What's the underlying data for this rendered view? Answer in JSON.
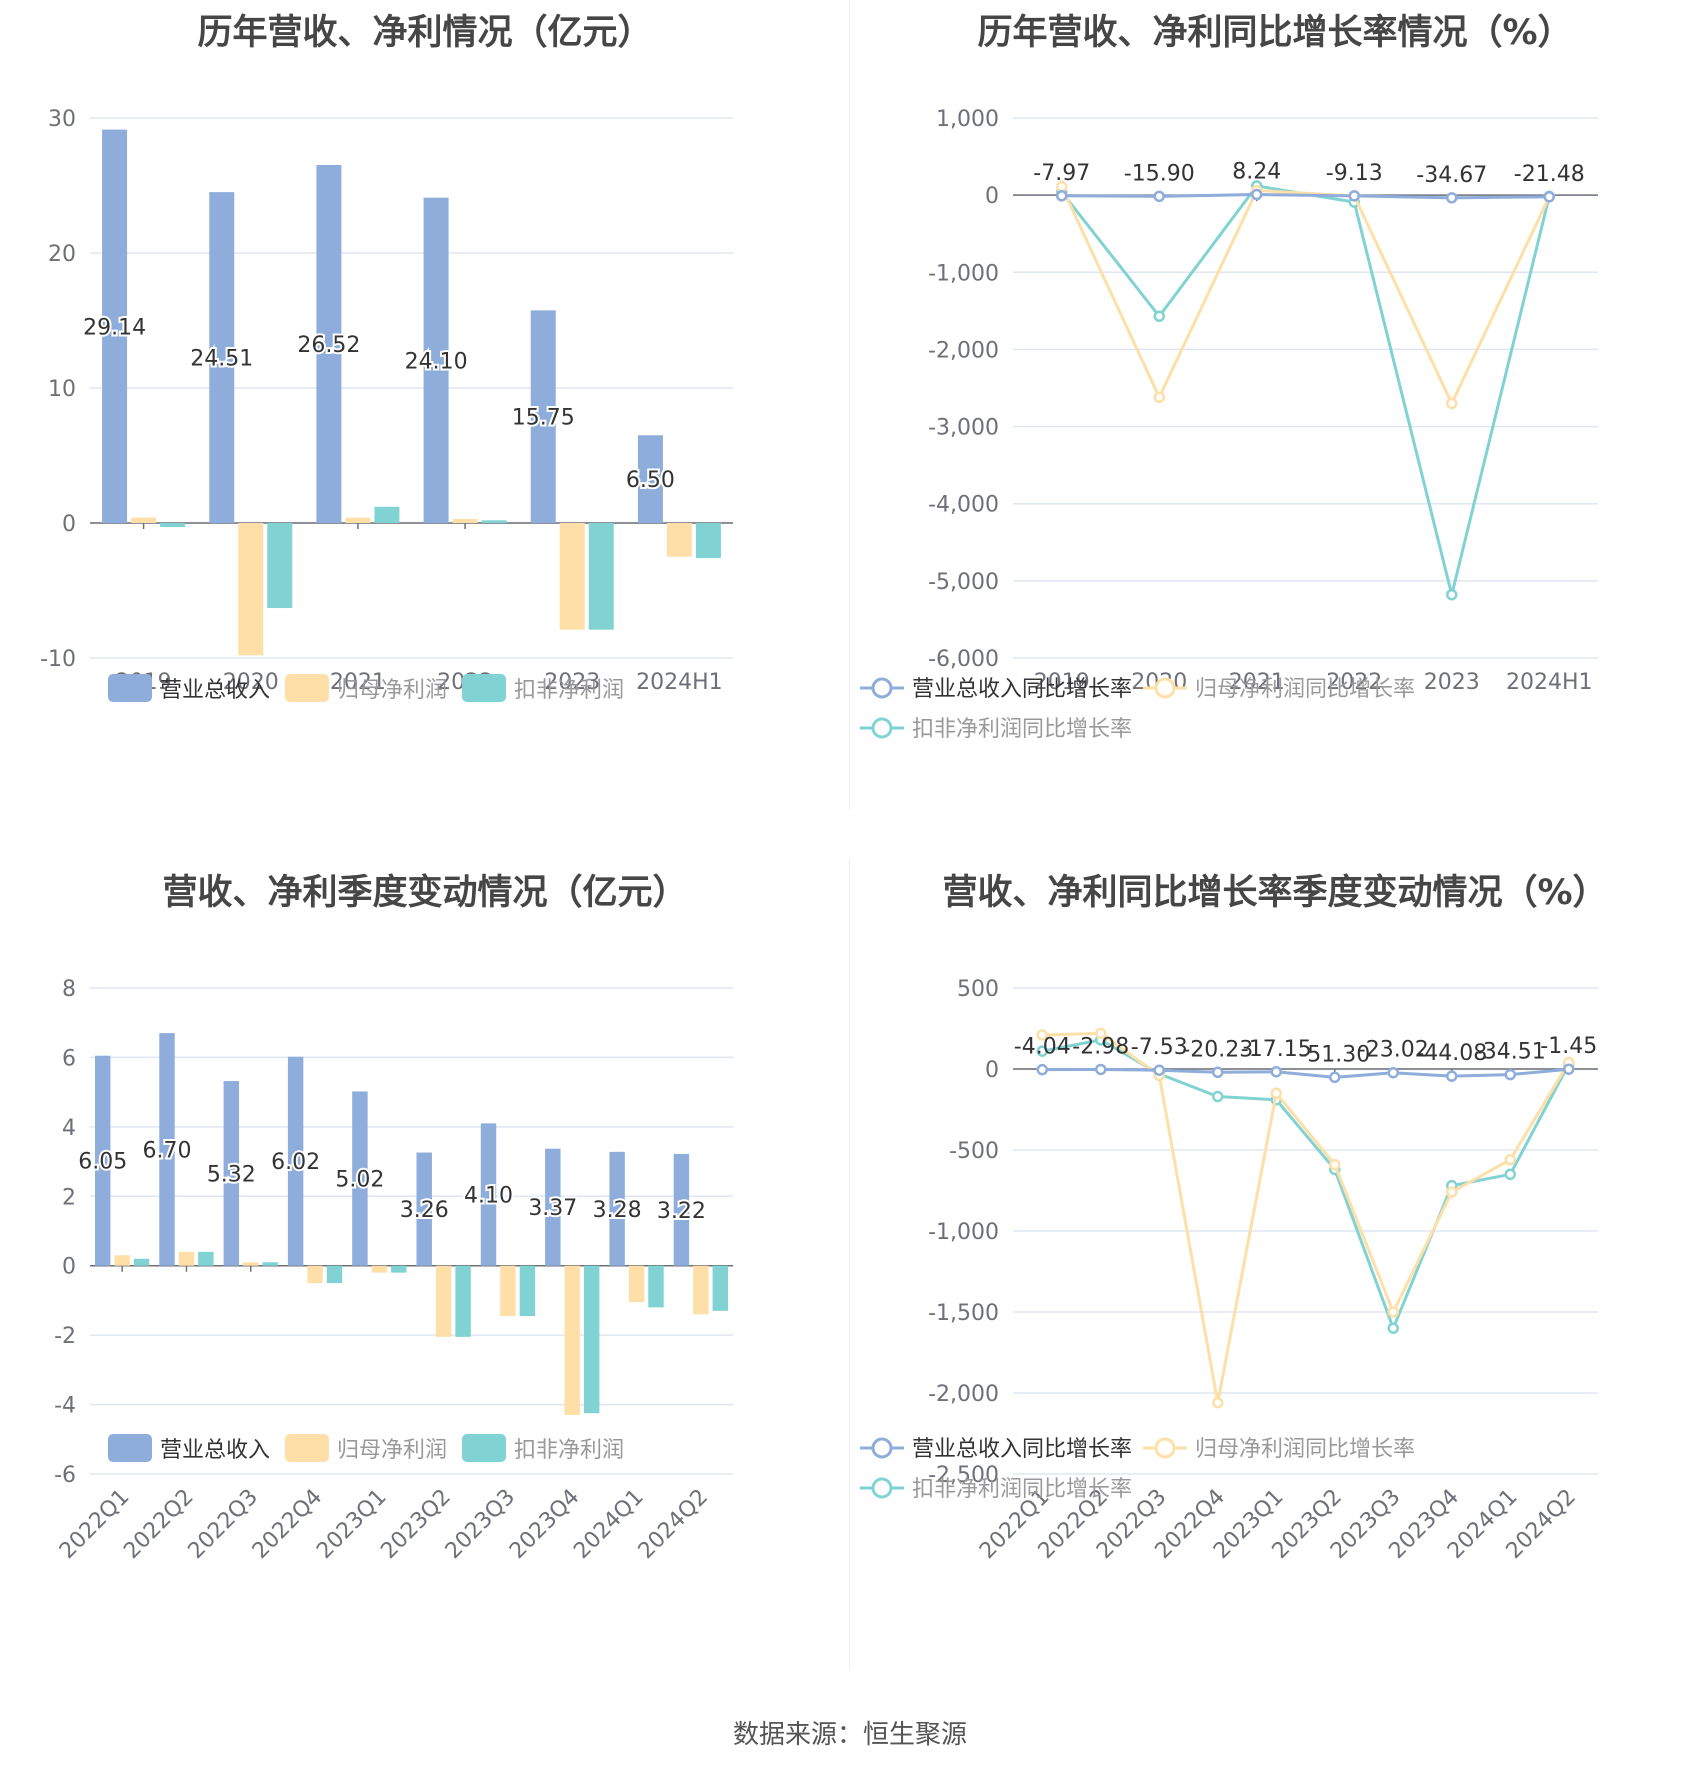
{
  "colors": {
    "revenue": "#8eaddb",
    "net_profit": "#fedfa8",
    "deducted_profit": "#81d3d3",
    "grid": "#e0e6f1",
    "axis": "#6e7079",
    "text": "#464646"
  },
  "source": "数据来源：恒生聚源",
  "chart_data": [
    {
      "id": "annual_values",
      "type": "bar",
      "title": "历年营收、净利情况（亿元）",
      "categories": [
        "2019",
        "2020",
        "2021",
        "2022",
        "2023",
        "2024H1"
      ],
      "ylim": [
        -10,
        30
      ],
      "yticks": [
        -10,
        0,
        10,
        20,
        30
      ],
      "grid": true,
      "legend_position": "bottom",
      "series": [
        {
          "name": "营业总收入",
          "color_key": "revenue",
          "values": [
            29.14,
            24.51,
            26.52,
            24.1,
            15.75,
            6.5
          ],
          "labels": [
            "29.14",
            "24.51",
            "26.52",
            "24.10",
            "15.75",
            "6.50"
          ]
        },
        {
          "name": "归母净利润",
          "color_key": "net_profit",
          "values": [
            0.4,
            -9.8,
            0.4,
            0.3,
            -7.9,
            -2.5
          ]
        },
        {
          "name": "扣非净利润",
          "color_key": "deducted_profit",
          "values": [
            -0.3,
            -6.3,
            1.2,
            0.2,
            -7.9,
            -2.6
          ]
        }
      ]
    },
    {
      "id": "annual_growth",
      "type": "line",
      "title": "历年营收、净利同比增长率情况（%）",
      "categories": [
        "2019",
        "2020",
        "2021",
        "2022",
        "2023",
        "2024H1"
      ],
      "ylim": [
        -6000,
        1000
      ],
      "yticks": [
        -6000,
        -5000,
        -4000,
        -3000,
        -2000,
        -1000,
        0,
        1000
      ],
      "ytick_labels": [
        "-6,000",
        "-5,000",
        "-4,000",
        "-3,000",
        "-2,000",
        "-1,000",
        "0",
        "1,000"
      ],
      "grid": true,
      "legend_position": "bottom",
      "series": [
        {
          "name": "营业总收入同比增长率",
          "color_key": "revenue",
          "values": [
            -7.97,
            -15.9,
            8.24,
            -9.13,
            -34.67,
            -21.48
          ],
          "labels": [
            "-7.97",
            "-15.90",
            "8.24",
            "-9.13",
            "-34.67",
            "-21.48"
          ]
        },
        {
          "name": "归母净利润同比增长率",
          "color_key": "net_profit",
          "values": [
            110,
            -2620,
            60,
            -10,
            -2700,
            -20
          ]
        },
        {
          "name": "扣非净利润同比增长率",
          "color_key": "deducted_profit",
          "values": [
            40,
            -1570,
            120,
            -90,
            -5180,
            -15
          ]
        }
      ]
    },
    {
      "id": "quarterly_values",
      "type": "bar",
      "title": "营收、净利季度变动情况（亿元）",
      "categories": [
        "2022Q1",
        "2022Q2",
        "2022Q3",
        "2022Q4",
        "2023Q1",
        "2023Q2",
        "2023Q3",
        "2023Q4",
        "2024Q1",
        "2024Q2"
      ],
      "ylim": [
        -6,
        8
      ],
      "yticks": [
        -6,
        -4,
        -2,
        0,
        2,
        4,
        6,
        8
      ],
      "grid": true,
      "legend_position": "bottom",
      "series": [
        {
          "name": "营业总收入",
          "color_key": "revenue",
          "values": [
            6.05,
            6.7,
            5.32,
            6.02,
            5.02,
            3.26,
            4.1,
            3.37,
            3.28,
            3.22
          ],
          "labels": [
            "6.05",
            "6.70",
            "5.32",
            "6.02",
            "5.02",
            "3.26",
            "4.10",
            "3.37",
            "3.28",
            "3.22"
          ]
        },
        {
          "name": "归母净利润",
          "color_key": "net_profit",
          "values": [
            0.3,
            0.4,
            0.1,
            -0.5,
            -0.2,
            -2.05,
            -1.45,
            -4.3,
            -1.05,
            -1.4
          ]
        },
        {
          "name": "扣非净利润",
          "color_key": "deducted_profit",
          "values": [
            0.2,
            0.4,
            0.1,
            -0.5,
            -0.2,
            -2.05,
            -1.45,
            -4.25,
            -1.2,
            -1.3
          ]
        }
      ]
    },
    {
      "id": "quarterly_growth",
      "type": "line",
      "title": "营收、净利同比增长率季度变动情况（%）",
      "categories": [
        "2022Q1",
        "2022Q2",
        "2022Q3",
        "2022Q4",
        "2023Q1",
        "2023Q2",
        "2023Q3",
        "2023Q4",
        "2024Q1",
        "2024Q2"
      ],
      "ylim": [
        -2500,
        500
      ],
      "yticks": [
        -2500,
        -2000,
        -1500,
        -1000,
        -500,
        0,
        500
      ],
      "ytick_labels": [
        "-2,500",
        "-2,000",
        "-1,500",
        "-1,000",
        "-500",
        "0",
        "500"
      ],
      "grid": true,
      "legend_position": "bottom",
      "series": [
        {
          "name": "营业总收入同比增长率",
          "color_key": "revenue",
          "values": [
            -4.04,
            -2.98,
            -7.53,
            -20.23,
            -17.15,
            -51.3,
            -23.02,
            -44.08,
            -34.51,
            -1.45
          ],
          "labels": [
            "-4.04",
            "-2.98",
            "-7.53",
            "-20.23",
            "-17.15",
            "-51.30",
            "-23.02",
            "-44.08",
            "-34.51",
            "-1.45"
          ]
        },
        {
          "name": "归母净利润同比增长率",
          "color_key": "net_profit",
          "values": [
            210,
            220,
            -40,
            -2060,
            -150,
            -590,
            -1500,
            -760,
            -560,
            40
          ]
        },
        {
          "name": "扣非净利润同比增长率",
          "color_key": "deducted_profit",
          "values": [
            110,
            180,
            -30,
            -170,
            -190,
            -620,
            -1600,
            -720,
            -650,
            30
          ]
        }
      ]
    }
  ]
}
